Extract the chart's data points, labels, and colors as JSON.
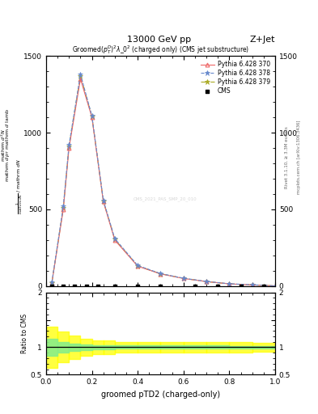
{
  "title_top": "13000 GeV pp",
  "title_right": "Z+Jet",
  "xlabel": "groomed pTD2 (charged-only)",
  "watermark": "CMS_2021_PAS_SMP_20_010",
  "xlim": [
    0,
    1
  ],
  "ylim_main": [
    0,
    1500
  ],
  "ylim_ratio": [
    0.5,
    2.0
  ],
  "yticks_main": [
    0,
    500,
    1000,
    1500
  ],
  "ytick_labels_main": [
    "0",
    "500",
    "1000",
    "1500"
  ],
  "py370_x": [
    0.025,
    0.075,
    0.1,
    0.15,
    0.2,
    0.25,
    0.3,
    0.4,
    0.5,
    0.6,
    0.7,
    0.8,
    0.9,
    1.0
  ],
  "py370_y": [
    20,
    500,
    900,
    1350,
    1100,
    550,
    300,
    130,
    80,
    50,
    30,
    15,
    8,
    2
  ],
  "py378_x": [
    0.025,
    0.075,
    0.1,
    0.15,
    0.2,
    0.25,
    0.3,
    0.4,
    0.5,
    0.6,
    0.7,
    0.8,
    0.9,
    1.0
  ],
  "py378_y": [
    25,
    520,
    920,
    1380,
    1110,
    560,
    310,
    135,
    82,
    52,
    31,
    16,
    9,
    2
  ],
  "py379_x": [
    0.025,
    0.075,
    0.1,
    0.15,
    0.2,
    0.25,
    0.3,
    0.4,
    0.5,
    0.6,
    0.7,
    0.8,
    0.9,
    1.0
  ],
  "py379_y": [
    22,
    510,
    910,
    1370,
    1105,
    555,
    305,
    132,
    81,
    51,
    30,
    15,
    8,
    2
  ],
  "cms_x": [
    0.025,
    0.075,
    0.125,
    0.175,
    0.225,
    0.3,
    0.4,
    0.5,
    0.65,
    0.75,
    0.85,
    0.95
  ],
  "cms_y": [
    0,
    0,
    0,
    0,
    0,
    0,
    0,
    0,
    0,
    0,
    0,
    0
  ],
  "ratio_edges": [
    0.0,
    0.05,
    0.1,
    0.15,
    0.2,
    0.25,
    0.3,
    0.4,
    0.5,
    0.6,
    0.7,
    0.8,
    0.9,
    1.0
  ],
  "green_band_lo": [
    0.85,
    0.9,
    0.93,
    0.95,
    0.96,
    0.96,
    0.97,
    0.97,
    0.97,
    0.97,
    0.97,
    0.98,
    0.98
  ],
  "green_band_hi": [
    1.15,
    1.1,
    1.07,
    1.05,
    1.04,
    1.04,
    1.03,
    1.03,
    1.03,
    1.03,
    1.03,
    1.02,
    1.02
  ],
  "yellow_band_lo": [
    0.62,
    0.72,
    0.79,
    0.84,
    0.87,
    0.88,
    0.9,
    0.9,
    0.9,
    0.9,
    0.9,
    0.91,
    0.92
  ],
  "yellow_band_hi": [
    1.38,
    1.28,
    1.21,
    1.16,
    1.13,
    1.12,
    1.1,
    1.1,
    1.1,
    1.1,
    1.1,
    1.09,
    1.08
  ],
  "color_py370": "#ee6666",
  "color_py378": "#6688cc",
  "color_py379": "#aaaa22",
  "color_cms": "black",
  "bg_color": "#ffffff",
  "right_label1": "Rivet 3.1.10, ≥ 3.3M events",
  "right_label2": "mcplots.cern.ch [arXiv:1306.3436]"
}
